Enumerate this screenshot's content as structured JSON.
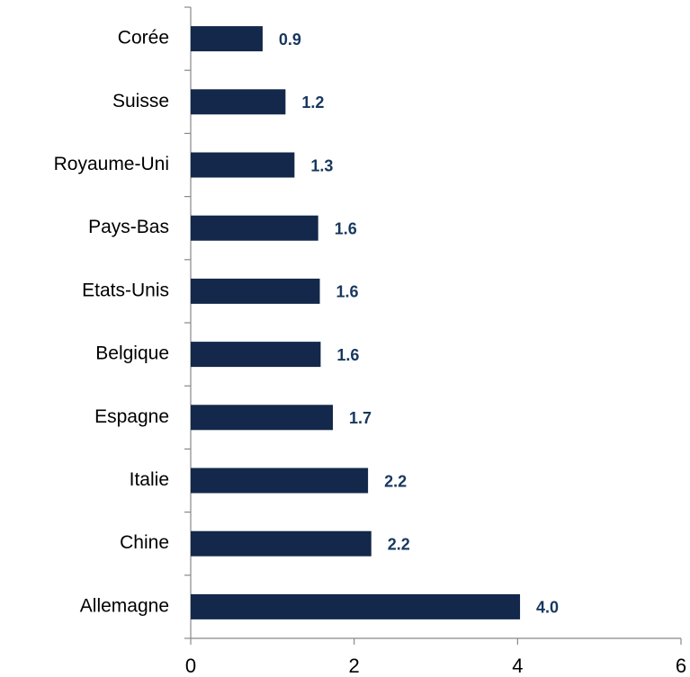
{
  "chart_data": {
    "type": "hbar",
    "categories": [
      "Corée",
      "Suisse",
      "Royaume-Uni",
      "Pays-Bas",
      "Etats-Unis",
      "Belgique",
      "Espagne",
      "Italie",
      "Chine",
      "Allemagne"
    ],
    "values": [
      0.88,
      1.16,
      1.27,
      1.56,
      1.58,
      1.59,
      1.74,
      2.17,
      2.21,
      4.03
    ],
    "value_labels": [
      "0.9",
      "1.2",
      "1.3",
      "1.6",
      "1.6",
      "1.6",
      "1.7",
      "2.2",
      "2.2",
      "4.0"
    ],
    "color": "#13284a",
    "xlim": [
      0,
      6
    ],
    "xticks": [
      0,
      2,
      4,
      6
    ]
  }
}
